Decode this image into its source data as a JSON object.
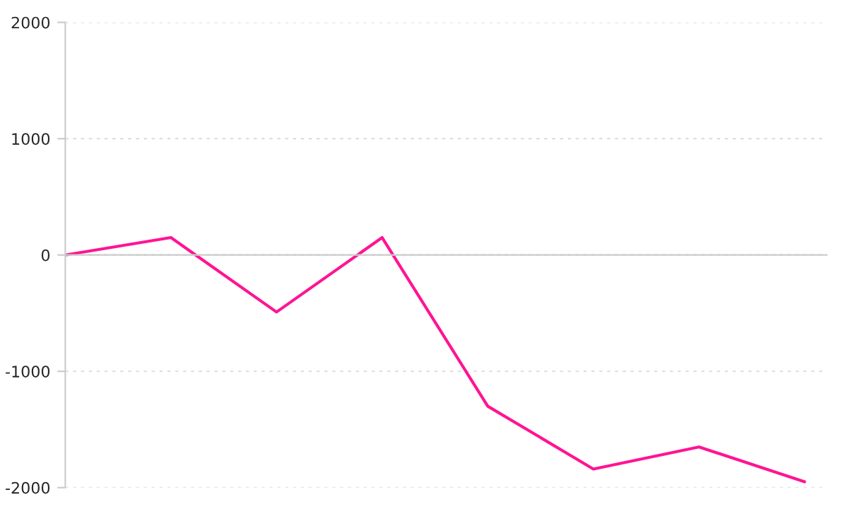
{
  "chart_data": {
    "type": "line",
    "categories": [
      null,
      null,
      null,
      null,
      null,
      null,
      null,
      null
    ],
    "series": [
      {
        "color": "#ff1493",
        "values": [
          0,
          150,
          -490,
          150,
          -1300,
          -1840,
          -1650,
          -1950
        ]
      }
    ],
    "ylim": [
      -2000,
      2000
    ],
    "yticks": [
      -2000,
      -1000,
      0,
      1000,
      2000
    ],
    "tick_labels": "y",
    "grid": "y",
    "marker": "none",
    "line_style": "solid"
  }
}
